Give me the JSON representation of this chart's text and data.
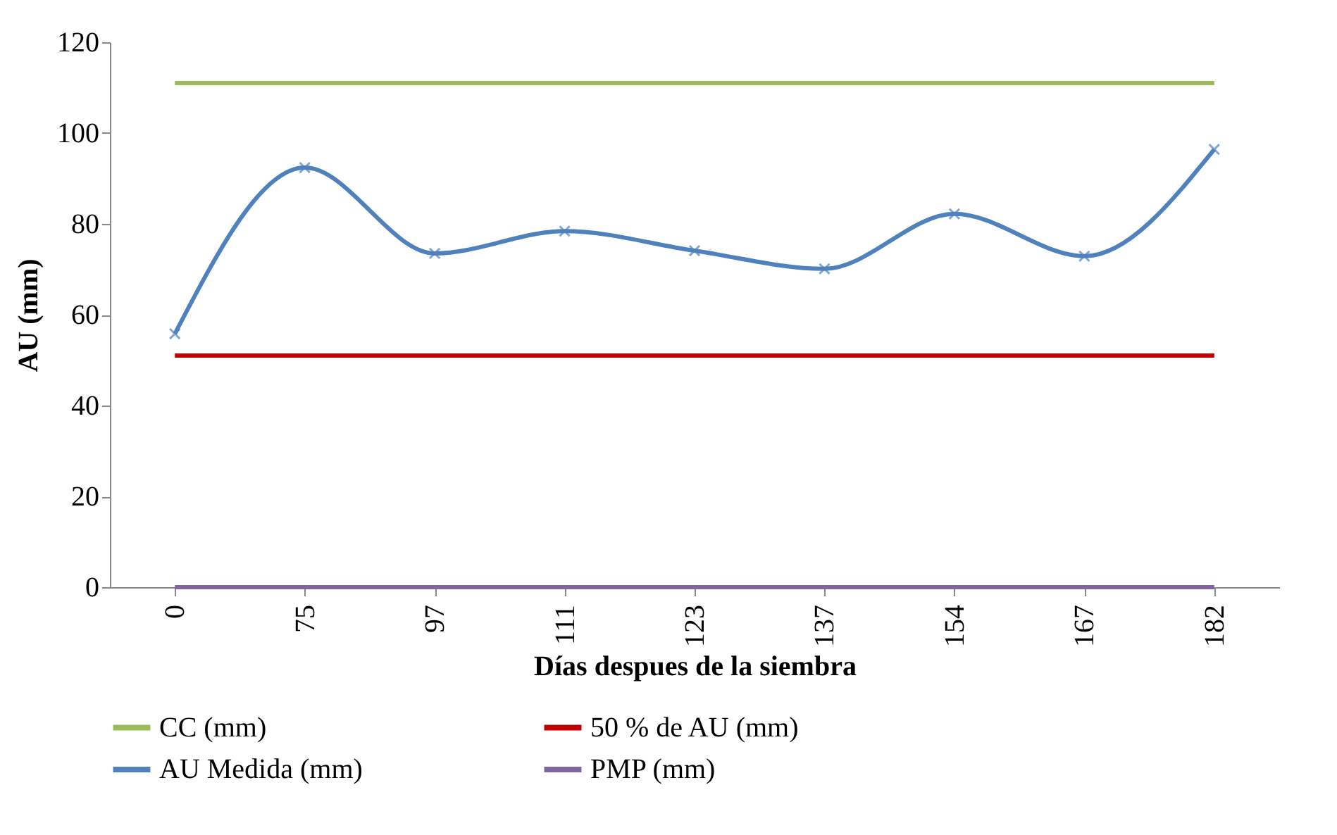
{
  "chart_data": {
    "type": "line",
    "xlabel": "Días despues de la siembra",
    "ylabel": "AU (mm)",
    "categories": [
      "0",
      "75",
      "97",
      "111",
      "123",
      "137",
      "154",
      "167",
      "182"
    ],
    "series": [
      {
        "name": "CC (mm)",
        "color": "#9bbb59",
        "values": [
          111,
          111,
          111,
          111,
          111,
          111,
          111,
          111,
          111
        ]
      },
      {
        "name": "50 % de AU (mm)",
        "color": "#c00000",
        "values": [
          51,
          51,
          51,
          51,
          51,
          51,
          51,
          51,
          51
        ]
      },
      {
        "name": "AU Medida (mm)",
        "color": "#4f81bd",
        "marker": "cross",
        "values": [
          55.8,
          92.4,
          73.5,
          78.4,
          74.1,
          70.1,
          82.2,
          72.9,
          96.4
        ]
      },
      {
        "name": "PMP (mm)",
        "color": "#8064a2",
        "values": [
          0,
          0,
          0,
          0,
          0,
          0,
          0,
          0,
          0
        ]
      }
    ],
    "ylim": [
      0,
      120
    ],
    "yticks": [
      0,
      20,
      40,
      60,
      80,
      100,
      120
    ],
    "grid": false,
    "legend": "bottom",
    "marker": "none"
  }
}
